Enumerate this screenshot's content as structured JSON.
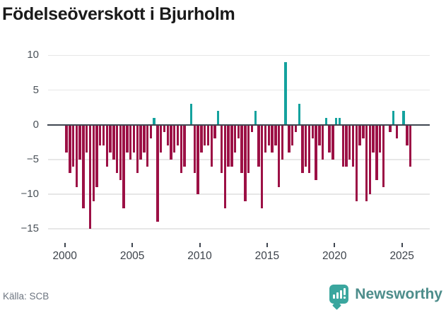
{
  "title": "Födelseöverskott i Bjurholm",
  "source": "Källa: SCB",
  "branding": {
    "logo_text": "Newsworthy",
    "logo_icon": "speech-bubble-bar-chart"
  },
  "colors": {
    "negative_bar": "#9c1045",
    "positive_bar": "#14a29e",
    "grid": "#e7e7e7",
    "zero_line": "#3f4650",
    "axis_text": "#4a5158",
    "title_text": "#1a1a1a",
    "source_text": "#6d7580",
    "logo_teal": "#3aa69e",
    "logo_text_color": "#4d8d8b"
  },
  "chart_data": {
    "type": "bar",
    "title": "Födelseöverskott i Bjurholm",
    "xlabel": "",
    "ylabel": "",
    "frequency": "quarterly",
    "start": "2000Q1",
    "end": "2025Q3",
    "ylim": [
      -15,
      10
    ],
    "yticks": [
      10,
      5,
      0,
      -5,
      -10,
      -15
    ],
    "xticks": [
      2000,
      2005,
      2010,
      2015,
      2020,
      2025
    ],
    "grid": true,
    "legend": false,
    "values_by_year": {
      "2000": [
        -4,
        -7,
        -6,
        -9
      ],
      "2001": [
        -5,
        -12,
        -4,
        -15
      ],
      "2002": [
        -11,
        -9,
        -3,
        -3
      ],
      "2003": [
        -6,
        -4,
        -5,
        -7
      ],
      "2004": [
        -8,
        -12,
        -4,
        -5
      ],
      "2005": [
        -4,
        -7,
        -5,
        -4
      ],
      "2006": [
        -6,
        -2,
        1,
        -14
      ],
      "2007": [
        -4,
        -1,
        -3,
        -5
      ],
      "2008": [
        -4,
        -3,
        -7,
        -6
      ],
      "2009": [
        0,
        3,
        -7,
        -10
      ],
      "2010": [
        -4,
        -3,
        -3,
        -6
      ],
      "2011": [
        -2,
        2,
        -7,
        -12
      ],
      "2012": [
        -6,
        -6,
        -4,
        -2
      ],
      "2013": [
        -7,
        -11,
        -7,
        -1
      ],
      "2014": [
        2,
        -6,
        -12,
        -4
      ],
      "2015": [
        -3,
        -4,
        -3,
        -9
      ],
      "2016": [
        -5,
        9,
        -4,
        -3
      ],
      "2017": [
        -1,
        3,
        -7,
        -6
      ],
      "2018": [
        -7,
        -2,
        -8,
        -3
      ],
      "2019": [
        -5,
        1,
        -4,
        -5
      ],
      "2020": [
        1,
        1,
        -6,
        -6
      ],
      "2021": [
        -5,
        -6,
        -11,
        -3
      ],
      "2022": [
        -2,
        -11,
        -10,
        -4
      ],
      "2023": [
        -8,
        -4,
        -9,
        0
      ],
      "2024": [
        -1,
        2,
        -2,
        0
      ],
      "2025": [
        2,
        -3,
        -6
      ]
    }
  }
}
